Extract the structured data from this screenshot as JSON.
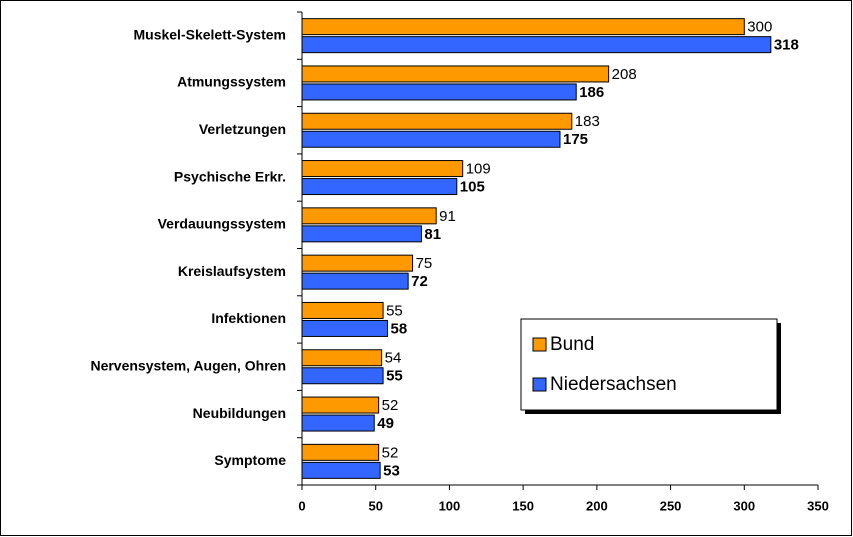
{
  "chart_data": {
    "type": "bar",
    "orientation": "horizontal",
    "categories": [
      "Muskel-Skelett-System",
      "Atmungssystem",
      "Verletzungen",
      "Psychische Erkr.",
      "Verdauungssystem",
      "Kreislaufsystem",
      "Infektionen",
      "Nervensystem, Augen, Ohren",
      "Neubildungen",
      "Symptome"
    ],
    "series": [
      {
        "name": "Bund",
        "color": "#ff9900",
        "values": [
          300,
          208,
          183,
          109,
          91,
          75,
          55,
          54,
          52,
          52
        ]
      },
      {
        "name": "Niedersachsen",
        "color": "#3366ff",
        "values": [
          318,
          186,
          175,
          105,
          81,
          72,
          58,
          55,
          49,
          53
        ]
      }
    ],
    "xlim": [
      0,
      350
    ],
    "xticks": [
      0,
      50,
      100,
      150,
      200,
      250,
      300,
      350
    ],
    "legend": "lower right"
  }
}
